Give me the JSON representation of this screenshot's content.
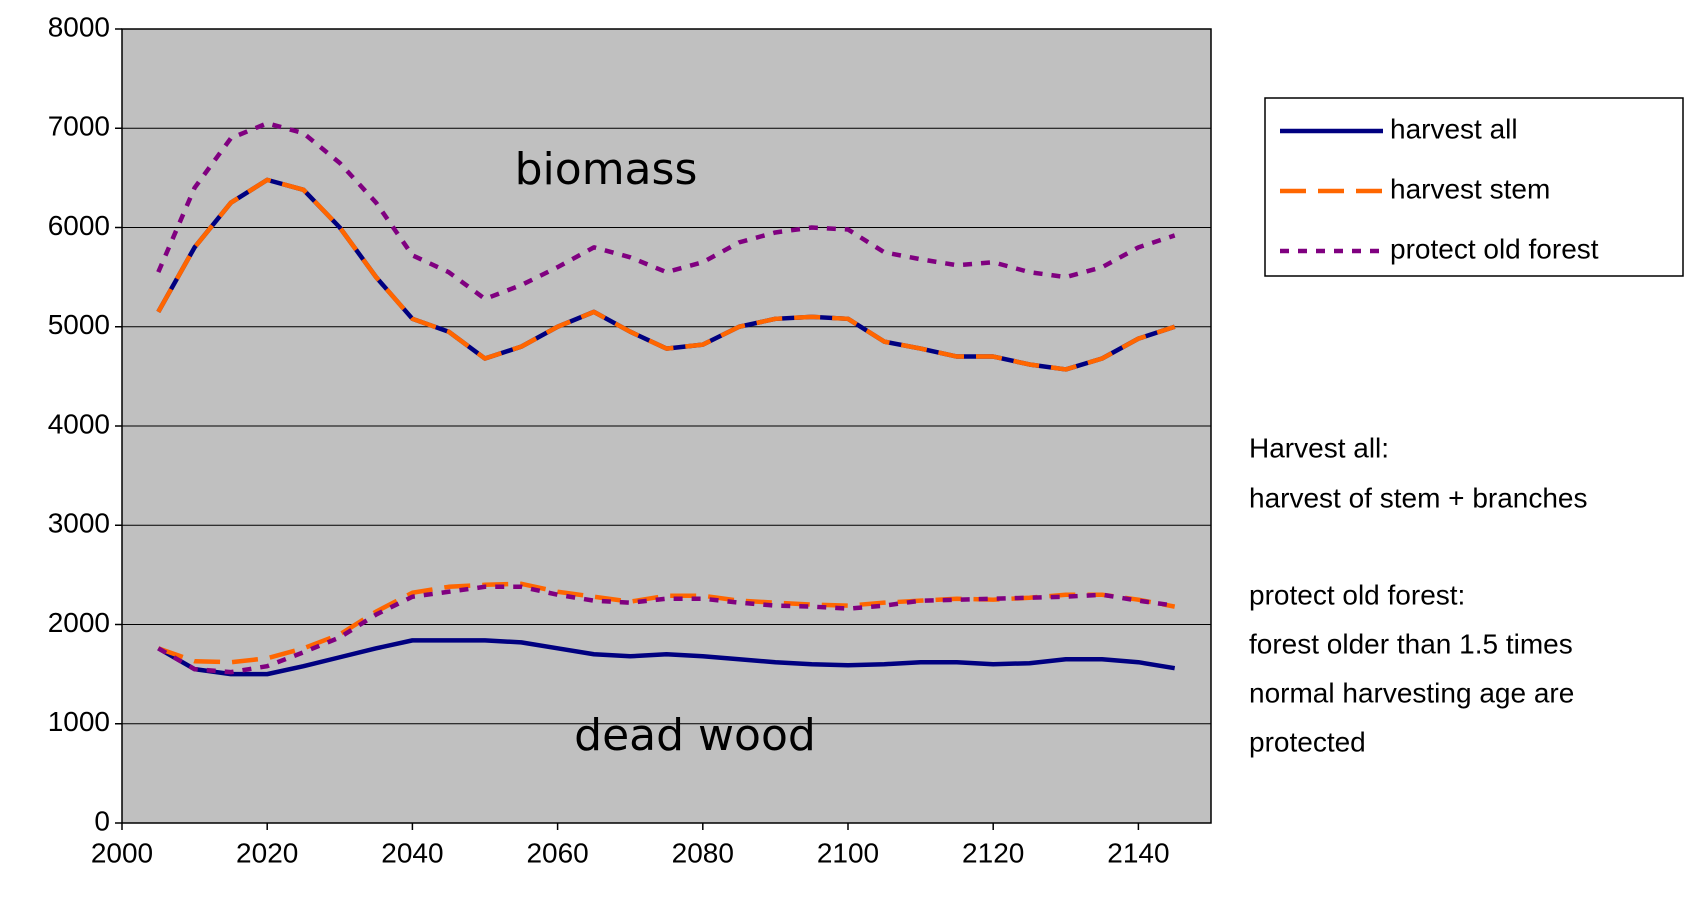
{
  "chart_data": {
    "type": "line",
    "x": [
      2005,
      2010,
      2015,
      2020,
      2025,
      2030,
      2035,
      2040,
      2045,
      2050,
      2055,
      2060,
      2065,
      2070,
      2075,
      2080,
      2085,
      2090,
      2095,
      2100,
      2105,
      2110,
      2115,
      2120,
      2125,
      2130,
      2135,
      2140,
      2145
    ],
    "series": [
      {
        "name": "harvest all",
        "color": "#000080",
        "dash": "solid",
        "values": [
          5150,
          5800,
          6250,
          6480,
          6380,
          6000,
          5500,
          5080,
          4950,
          4680,
          4800,
          5000,
          5150,
          4950,
          4780,
          4820,
          5000,
          5080,
          5100,
          5080,
          4850,
          4780,
          4700,
          4700,
          4620,
          4570,
          4680,
          4880,
          5000
        ]
      },
      {
        "name": "harvest stem",
        "color": "#ff6600",
        "dash": "long",
        "values": [
          5150,
          5800,
          6250,
          6480,
          6380,
          6000,
          5500,
          5080,
          4950,
          4680,
          4800,
          5000,
          5150,
          4950,
          4780,
          4820,
          5000,
          5080,
          5100,
          5080,
          4850,
          4780,
          4700,
          4700,
          4620,
          4570,
          4680,
          4880,
          5000
        ]
      },
      {
        "name": "protect old forest",
        "color": "#800080",
        "dash": "short",
        "values": [
          5550,
          6400,
          6900,
          7050,
          6950,
          6650,
          6250,
          5720,
          5550,
          5280,
          5420,
          5600,
          5800,
          5700,
          5550,
          5650,
          5850,
          5950,
          6000,
          5980,
          5750,
          5680,
          5620,
          5650,
          5550,
          5500,
          5600,
          5800,
          5920
        ]
      },
      {
        "name": "harvest all",
        "color": "#000080",
        "dash": "solid",
        "values": [
          1760,
          1550,
          1500,
          1500,
          1580,
          1670,
          1760,
          1840,
          1840,
          1840,
          1820,
          1760,
          1700,
          1680,
          1700,
          1680,
          1650,
          1620,
          1600,
          1590,
          1600,
          1620,
          1620,
          1600,
          1610,
          1650,
          1650,
          1620,
          1560
        ]
      },
      {
        "name": "harvest stem",
        "color": "#ff6600",
        "dash": "long",
        "values": [
          1760,
          1630,
          1620,
          1660,
          1760,
          1900,
          2130,
          2320,
          2380,
          2400,
          2410,
          2330,
          2280,
          2230,
          2290,
          2290,
          2240,
          2220,
          2200,
          2190,
          2220,
          2240,
          2260,
          2250,
          2270,
          2300,
          2300,
          2250,
          2180
        ]
      },
      {
        "name": "protect old forest",
        "color": "#800080",
        "dash": "short",
        "values": [
          1760,
          1550,
          1520,
          1580,
          1720,
          1870,
          2100,
          2280,
          2330,
          2380,
          2380,
          2300,
          2240,
          2220,
          2260,
          2260,
          2220,
          2190,
          2180,
          2160,
          2190,
          2240,
          2250,
          2260,
          2270,
          2280,
          2300,
          2240,
          2190
        ]
      }
    ],
    "xlim": [
      2000,
      2150
    ],
    "xticks": [
      2000,
      2020,
      2040,
      2060,
      2080,
      2100,
      2120,
      2140
    ],
    "ylim": [
      0,
      8000
    ],
    "yticks": [
      0,
      1000,
      2000,
      3000,
      4000,
      5000,
      6000,
      7000,
      8000
    ],
    "grid": true,
    "background": "#c0c0c0",
    "annotations": [
      "biomass",
      "dead wood"
    ],
    "notes": [
      "Harvest all:",
      "harvest of stem + branches",
      "protect old forest:",
      "forest older than 1.5 times",
      "normal harvesting age are",
      "protected"
    ]
  }
}
